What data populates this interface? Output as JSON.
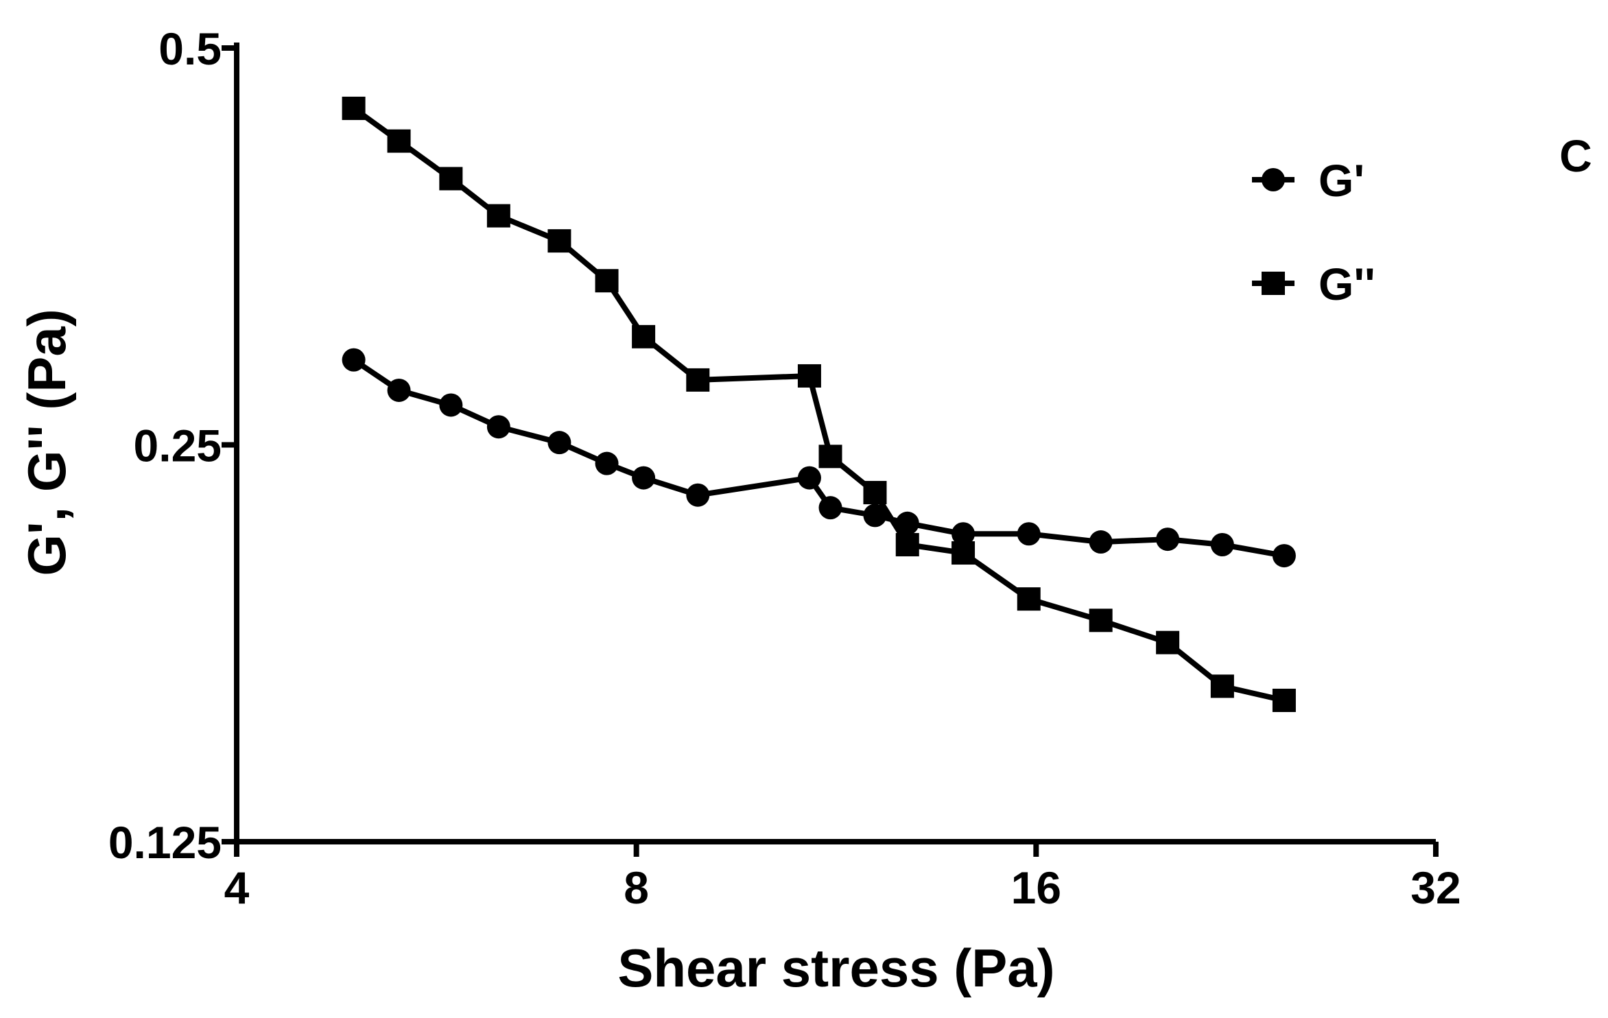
{
  "chart_data": {
    "type": "line",
    "panel_label": "C",
    "xlabel": "Shear stress (Pa)",
    "ylabel": "G', G'' (Pa)",
    "xscale": "log2",
    "yscale": "log2",
    "xlim": [
      4,
      32
    ],
    "ylim": [
      0.125,
      0.5
    ],
    "xticks": [
      4,
      8,
      16,
      32
    ],
    "xtick_labels": [
      "4",
      "8",
      "16",
      "32"
    ],
    "yticks": [
      0.125,
      0.25,
      0.5
    ],
    "ytick_labels": [
      "0.125",
      "0.25",
      "0.5"
    ],
    "legend_position": "top-right",
    "series": [
      {
        "name": "G'",
        "marker": "circle",
        "x": [
          4.9,
          5.3,
          5.8,
          6.3,
          7.0,
          7.6,
          8.1,
          8.9,
          10.8,
          11.2,
          12.1,
          12.8,
          14.1,
          15.8,
          17.9,
          20.1,
          22.1,
          24.6
        ],
        "y": [
          0.29,
          0.275,
          0.268,
          0.258,
          0.251,
          0.242,
          0.236,
          0.229,
          0.236,
          0.224,
          0.221,
          0.218,
          0.214,
          0.214,
          0.211,
          0.212,
          0.21,
          0.206
        ]
      },
      {
        "name": "G''",
        "marker": "square",
        "x": [
          4.9,
          5.3,
          5.8,
          6.3,
          7.0,
          7.6,
          8.1,
          8.9,
          10.8,
          11.2,
          12.1,
          12.8,
          14.1,
          15.8,
          17.9,
          20.1,
          22.1,
          24.6
        ],
        "y": [
          0.45,
          0.425,
          0.398,
          0.373,
          0.357,
          0.333,
          0.302,
          0.28,
          0.282,
          0.245,
          0.23,
          0.21,
          0.207,
          0.191,
          0.184,
          0.177,
          0.164,
          0.16
        ]
      }
    ]
  }
}
